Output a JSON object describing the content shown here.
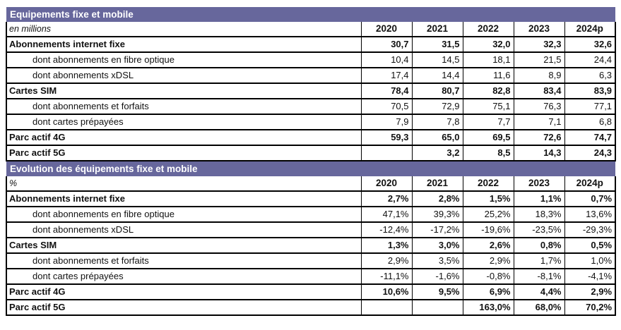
{
  "colors": {
    "header_band": "#67679C",
    "border": "#000000",
    "band_text": "#FFFFFF",
    "text": "#111111"
  },
  "table": {
    "years": [
      "2020",
      "2021",
      "2022",
      "2023",
      "2024p"
    ],
    "sections": [
      {
        "title": "Equipements fixe et mobile",
        "unit": "en millions",
        "rows": [
          {
            "label": "Abonnements internet fixe",
            "type": "main",
            "values": [
              "30,7",
              "31,5",
              "32,0",
              "32,3",
              "32,6"
            ]
          },
          {
            "label": "dont abonnements en fibre optique",
            "type": "sub",
            "values": [
              "10,4",
              "14,5",
              "18,1",
              "21,5",
              "24,4"
            ]
          },
          {
            "label": "dont abonnements xDSL",
            "type": "sub",
            "values": [
              "17,4",
              "14,4",
              "11,6",
              "8,9",
              "6,3"
            ]
          },
          {
            "label": "Cartes SIM",
            "type": "main",
            "values": [
              "78,4",
              "80,7",
              "82,8",
              "83,4",
              "83,9"
            ]
          },
          {
            "label": "dont abonnements et forfaits",
            "type": "sub",
            "values": [
              "70,5",
              "72,9",
              "75,1",
              "76,3",
              "77,1"
            ]
          },
          {
            "label": "dont cartes prépayées",
            "type": "sub",
            "values": [
              "7,9",
              "7,8",
              "7,7",
              "7,1",
              "6,8"
            ]
          },
          {
            "label": "Parc actif 4G",
            "type": "main",
            "values": [
              "59,3",
              "65,0",
              "69,5",
              "72,6",
              "74,7"
            ]
          },
          {
            "label": "Parc actif 5G",
            "type": "main",
            "values": [
              "",
              "3,2",
              "8,5",
              "14,3",
              "24,3"
            ]
          }
        ]
      },
      {
        "title": "Evolution des équipements fixe et mobile",
        "unit": "%",
        "rows": [
          {
            "label": "Abonnements internet fixe",
            "type": "main",
            "values": [
              "2,7%",
              "2,8%",
              "1,5%",
              "1,1%",
              "0,7%"
            ]
          },
          {
            "label": "dont abonnements en fibre optique",
            "type": "sub",
            "values": [
              "47,1%",
              "39,3%",
              "25,2%",
              "18,3%",
              "13,6%"
            ]
          },
          {
            "label": "dont abonnements xDSL",
            "type": "sub",
            "values": [
              "-12,4%",
              "-17,2%",
              "-19,6%",
              "-23,5%",
              "-29,3%"
            ]
          },
          {
            "label": "Cartes SIM",
            "type": "main",
            "values": [
              "1,3%",
              "3,0%",
              "2,6%",
              "0,8%",
              "0,5%"
            ]
          },
          {
            "label": "dont abonnements et forfaits",
            "type": "sub",
            "values": [
              "2,9%",
              "3,5%",
              "2,9%",
              "1,7%",
              "1,0%"
            ]
          },
          {
            "label": "dont cartes prépayées",
            "type": "sub",
            "values": [
              "-11,1%",
              "-1,6%",
              "-0,8%",
              "-8,1%",
              "-4,1%"
            ]
          },
          {
            "label": "Parc actif 4G",
            "type": "main",
            "values": [
              "10,6%",
              "9,5%",
              "6,9%",
              "4,4%",
              "2,9%"
            ]
          },
          {
            "label": "Parc actif 5G",
            "type": "main",
            "values": [
              "",
              "",
              "163,0%",
              "68,0%",
              "70,2%"
            ]
          }
        ]
      }
    ]
  },
  "chart_data": {
    "type": "table",
    "title": "Equipements fixe et mobile / Evolution des équipements fixe et mobile",
    "categories": [
      "2020",
      "2021",
      "2022",
      "2023",
      "2024p"
    ],
    "series": [
      {
        "name": "Abonnements internet fixe (millions)",
        "values": [
          30.7,
          31.5,
          32.0,
          32.3,
          32.6
        ]
      },
      {
        "name": "dont abonnements en fibre optique (millions)",
        "values": [
          10.4,
          14.5,
          18.1,
          21.5,
          24.4
        ]
      },
      {
        "name": "dont abonnements xDSL (millions)",
        "values": [
          17.4,
          14.4,
          11.6,
          8.9,
          6.3
        ]
      },
      {
        "name": "Cartes SIM (millions)",
        "values": [
          78.4,
          80.7,
          82.8,
          83.4,
          83.9
        ]
      },
      {
        "name": "dont abonnements et forfaits (millions)",
        "values": [
          70.5,
          72.9,
          75.1,
          76.3,
          77.1
        ]
      },
      {
        "name": "dont cartes prépayées (millions)",
        "values": [
          7.9,
          7.8,
          7.7,
          7.1,
          6.8
        ]
      },
      {
        "name": "Parc actif 4G (millions)",
        "values": [
          59.3,
          65.0,
          69.5,
          72.6,
          74.7
        ]
      },
      {
        "name": "Parc actif 5G (millions)",
        "values": [
          null,
          3.2,
          8.5,
          14.3,
          24.3
        ]
      },
      {
        "name": "Abonnements internet fixe (%)",
        "values": [
          2.7,
          2.8,
          1.5,
          1.1,
          0.7
        ]
      },
      {
        "name": "dont abonnements en fibre optique (%)",
        "values": [
          47.1,
          39.3,
          25.2,
          18.3,
          13.6
        ]
      },
      {
        "name": "dont abonnements xDSL (%)",
        "values": [
          -12.4,
          -17.2,
          -19.6,
          -23.5,
          -29.3
        ]
      },
      {
        "name": "Cartes SIM (%)",
        "values": [
          1.3,
          3.0,
          2.6,
          0.8,
          0.5
        ]
      },
      {
        "name": "dont abonnements et forfaits (%)",
        "values": [
          2.9,
          3.5,
          2.9,
          1.7,
          1.0
        ]
      },
      {
        "name": "dont cartes prépayées (%)",
        "values": [
          -11.1,
          -1.6,
          -0.8,
          -8.1,
          -4.1
        ]
      },
      {
        "name": "Parc actif 4G (%)",
        "values": [
          10.6,
          9.5,
          6.9,
          4.4,
          2.9
        ]
      },
      {
        "name": "Parc actif 5G (%)",
        "values": [
          null,
          null,
          163.0,
          68.0,
          70.2
        ]
      }
    ]
  }
}
